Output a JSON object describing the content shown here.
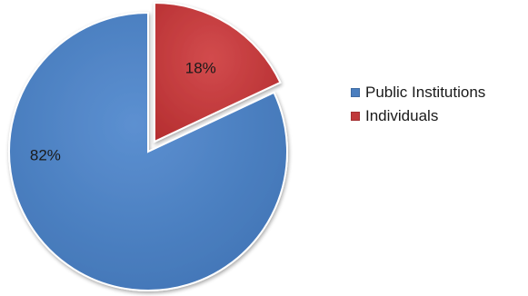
{
  "chart_data": {
    "type": "pie",
    "slices": [
      {
        "name": "Public Institutions",
        "value": 82,
        "label": "82%",
        "color": "#4a7ebf"
      },
      {
        "name": "Individuals",
        "value": 18,
        "label": "18%",
        "color": "#c0393b"
      }
    ],
    "legend": {
      "placement": "right",
      "items": [
        "Public Institutions",
        "Individuals"
      ]
    },
    "exploded_slice": "Individuals"
  }
}
